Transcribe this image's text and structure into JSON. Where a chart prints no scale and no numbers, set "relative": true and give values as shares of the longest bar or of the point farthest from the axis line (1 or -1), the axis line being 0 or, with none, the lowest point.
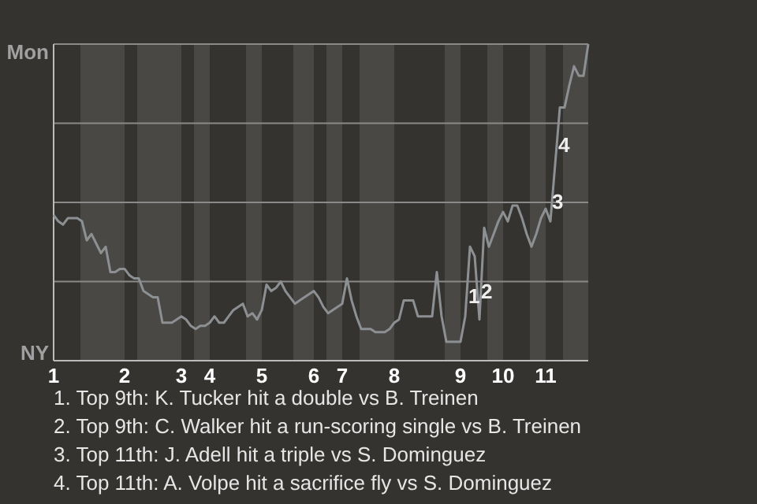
{
  "chart_data": {
    "type": "line",
    "color": "#8c9093",
    "relative": true,
    "categories": [
      "1",
      null,
      null,
      null,
      null,
      null,
      null,
      null,
      null,
      null,
      null,
      null,
      null,
      null,
      null,
      "2",
      null,
      null,
      null,
      null,
      null,
      null,
      null,
      null,
      null,
      null,
      null,
      "3",
      null,
      null,
      null,
      null,
      null,
      "4",
      null,
      null,
      null,
      null,
      null,
      null,
      null,
      null,
      null,
      null,
      "5",
      null,
      null,
      null,
      null,
      null,
      null,
      null,
      null,
      null,
      null,
      "6",
      null,
      null,
      null,
      null,
      null,
      "7",
      null,
      null,
      null,
      null,
      null,
      null,
      null,
      null,
      null,
      null,
      "8",
      null,
      null,
      null,
      null,
      null,
      null,
      null,
      null,
      null,
      null,
      null,
      null,
      null,
      "9",
      null,
      null,
      null,
      null,
      null,
      null,
      null,
      null,
      "10",
      null,
      null,
      null,
      null,
      null,
      null,
      null,
      null,
      "11",
      null,
      null,
      null,
      null,
      null,
      null,
      null,
      null,
      null
    ],
    "values": [
      0.46,
      0.44,
      0.43,
      0.45,
      0.45,
      0.45,
      0.44,
      0.38,
      0.4,
      0.37,
      0.34,
      0.36,
      0.28,
      0.28,
      0.29,
      0.29,
      0.27,
      0.26,
      0.26,
      0.22,
      0.21,
      0.2,
      0.2,
      0.12,
      0.12,
      0.12,
      0.13,
      0.14,
      0.13,
      0.11,
      0.1,
      0.11,
      0.11,
      0.12,
      0.14,
      0.12,
      0.12,
      0.14,
      0.16,
      0.17,
      0.18,
      0.14,
      0.15,
      0.13,
      0.16,
      0.24,
      0.22,
      0.23,
      0.25,
      0.22,
      0.2,
      0.18,
      0.19,
      0.2,
      0.21,
      0.22,
      0.2,
      0.17,
      0.15,
      0.16,
      0.17,
      0.18,
      0.26,
      0.19,
      0.14,
      0.1,
      0.1,
      0.1,
      0.09,
      0.09,
      0.09,
      0.1,
      0.12,
      0.13,
      0.19,
      0.19,
      0.19,
      0.14,
      0.14,
      0.14,
      0.14,
      0.28,
      0.14,
      0.06,
      0.06,
      0.06,
      0.06,
      0.14,
      0.36,
      0.33,
      0.13,
      0.42,
      0.36,
      0.4,
      0.44,
      0.47,
      0.44,
      0.49,
      0.49,
      0.45,
      0.4,
      0.36,
      0.4,
      0.45,
      0.48,
      0.44,
      0.62,
      0.8,
      0.8,
      0.87,
      0.93,
      0.9,
      0.9,
      1.0
    ],
    "grid": "y",
    "marker": "none",
    "line_style": "solid",
    "annotations": [
      "Mon",
      "NY",
      "1",
      "2",
      "3",
      "4",
      "1. Top 9th: K. Tucker hit a double vs B. Treinen",
      "2. Top 9th: C. Walker hit a run-scoring single vs B. Treinen",
      "3. Top 11th: J. Adell hit a triple vs S. Dominguez",
      "4. Top 11th: A. Volpe hit a sacrifice fly vs S. Dominguez"
    ]
  }
}
